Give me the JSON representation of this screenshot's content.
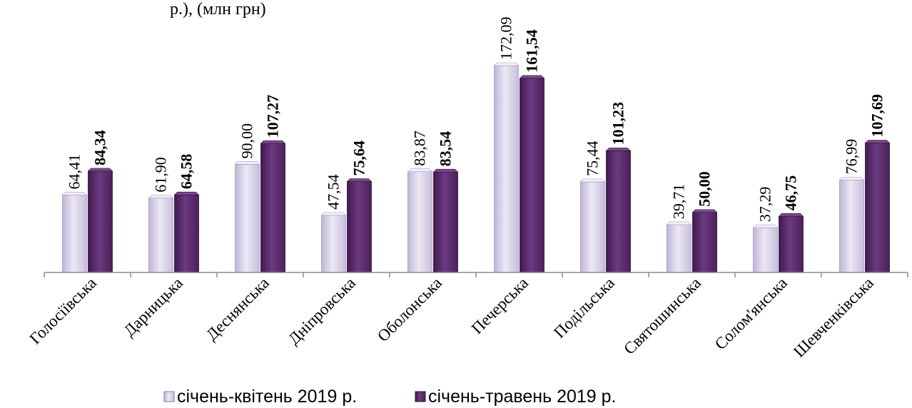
{
  "top_fragment": "р.), (млн грн)",
  "chart_data": {
    "type": "bar",
    "categories": [
      "Голосіївська",
      "Дарницька",
      "Деснянська",
      "Дніпровська",
      "Оболонська",
      "Печерська",
      "Подільська",
      "Святошинська",
      "Солом'янська",
      "Шевченківська"
    ],
    "series": [
      {
        "name": "січень-квітень 2019 р.",
        "values": [
          64.41,
          61.9,
          90.0,
          47.54,
          83.87,
          172.09,
          75.44,
          39.71,
          37.29,
          76.99
        ],
        "labels": [
          "64,41",
          "61,90",
          "90,00",
          "47,54",
          "83,87",
          "172,09",
          "75,44",
          "39,71",
          "37,29",
          "76,99"
        ],
        "color": "#d9d2e9"
      },
      {
        "name": "січень-травень 2019 р.",
        "values": [
          84.34,
          64.58,
          107.27,
          75.64,
          83.54,
          161.54,
          101.23,
          50.0,
          46.75,
          107.69
        ],
        "labels": [
          "84,34",
          "64,58",
          "107,27",
          "75,64",
          "83,54",
          "161,54",
          "101,23",
          "50,00",
          "46,75",
          "107,69"
        ],
        "color": "#5c2a6e"
      }
    ],
    "title": "",
    "xlabel": "",
    "ylabel": "",
    "ylim": [
      0,
      180
    ],
    "grid": false,
    "legend_position": "bottom"
  }
}
